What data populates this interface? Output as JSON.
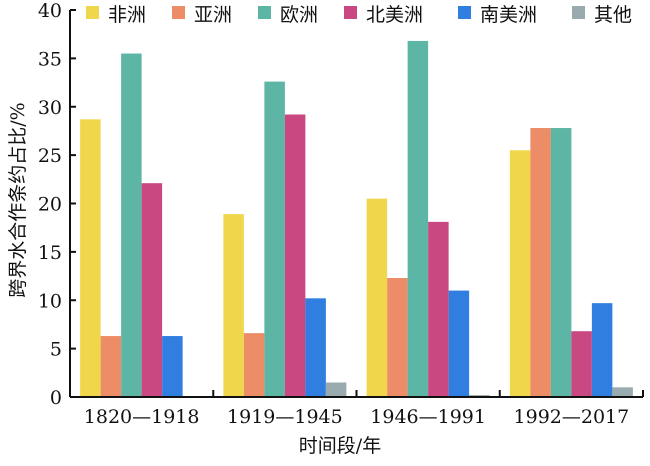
{
  "chart_data": {
    "type": "bar",
    "title": "",
    "xlabel": "时间段/年",
    "ylabel": "跨界水合作条约占比/%",
    "ylim": [
      0,
      40
    ],
    "yticks": [
      0,
      5,
      10,
      15,
      20,
      25,
      30,
      35,
      40
    ],
    "grid": false,
    "legend_position": "top",
    "categories": [
      "1820—1918",
      "1919—1945",
      "1946—1991",
      "1992—2017"
    ],
    "series": [
      {
        "name": "非洲",
        "color": "#f0d64a",
        "values": [
          28.7,
          18.9,
          20.5,
          25.5
        ]
      },
      {
        "name": "亚洲",
        "color": "#ec8d67",
        "values": [
          6.3,
          6.6,
          12.3,
          27.8
        ]
      },
      {
        "name": "欧洲",
        "color": "#5db5a5",
        "values": [
          35.5,
          32.6,
          36.8,
          27.8
        ]
      },
      {
        "name": "北美洲",
        "color": "#c94882",
        "values": [
          22.1,
          29.2,
          18.1,
          6.8
        ]
      },
      {
        "name": "南美洲",
        "color": "#307ee0",
        "values": [
          6.3,
          10.2,
          11.0,
          9.7
        ]
      },
      {
        "name": "其他",
        "color": "#9aabb0",
        "values": [
          0,
          1.5,
          0.2,
          1.0
        ]
      }
    ]
  }
}
